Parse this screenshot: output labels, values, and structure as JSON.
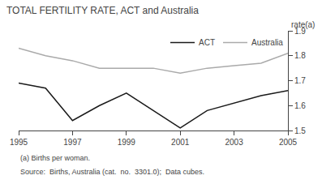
{
  "chart_data": {
    "type": "line",
    "title": "TOTAL FERTILITY RATE, ACT and Australia",
    "ylabel": "rate(a)",
    "annotations": [
      "(a) Births per woman.",
      "Source:  Births, Australia (cat.  no.  3301.0);  Data cubes."
    ],
    "x": [
      1995,
      1996,
      1997,
      1998,
      1999,
      2000,
      2001,
      2002,
      2003,
      2004,
      2005
    ],
    "series": [
      {
        "name": "ACT",
        "color": "#1a1a1a",
        "values": [
          1.69,
          1.67,
          1.54,
          1.6,
          1.65,
          1.58,
          1.51,
          1.58,
          1.61,
          1.64,
          1.66
        ]
      },
      {
        "name": "Australia",
        "color": "#aaaaaa",
        "values": [
          1.83,
          1.8,
          1.78,
          1.75,
          1.75,
          1.75,
          1.73,
          1.75,
          1.76,
          1.77,
          1.81
        ]
      }
    ],
    "xlim": [
      1995,
      2005
    ],
    "xticks": [
      1995,
      1997,
      1999,
      2001,
      2003,
      2005
    ],
    "ylim": [
      1.5,
      1.9
    ],
    "yticks": [
      1.5,
      1.6,
      1.7,
      1.8,
      1.9
    ],
    "grid": false,
    "legend": "upper right"
  }
}
